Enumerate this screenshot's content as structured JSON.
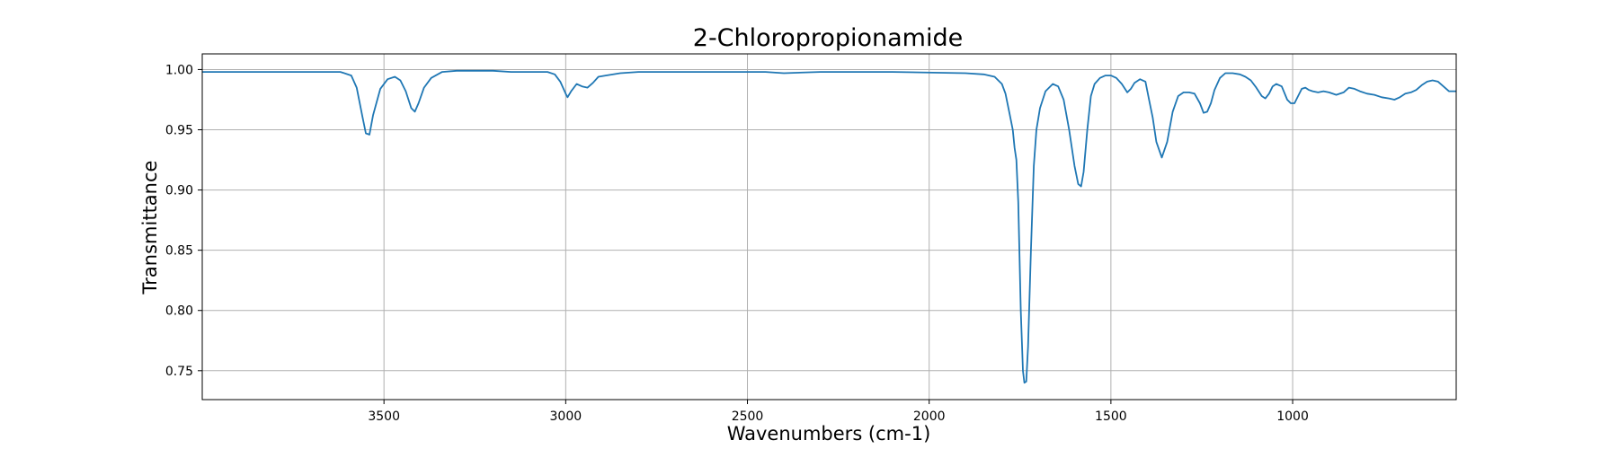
{
  "chart_data": {
    "type": "line",
    "title": "2-Chloropropionamide",
    "xlabel": "Wavenumbers (cm-1)",
    "ylabel": "Transmittance",
    "xlim": [
      4000,
      550
    ],
    "ylim": [
      0.726,
      1.013
    ],
    "x_inverted": true,
    "grid": true,
    "line_color": "#1f77b4",
    "x_ticks": [
      3500,
      3000,
      2500,
      2000,
      1500,
      1000
    ],
    "y_ticks": [
      0.75,
      0.8,
      0.85,
      0.9,
      0.95,
      1.0
    ],
    "x_tick_labels": [
      "3500",
      "3000",
      "2500",
      "2000",
      "1500",
      "1000"
    ],
    "y_tick_labels": [
      "0.75",
      "0.80",
      "0.85",
      "0.90",
      "0.95",
      "1.00"
    ],
    "series": [
      {
        "x": [
          4000,
          3900,
          3800,
          3700,
          3620,
          3590,
          3575,
          3560,
          3550,
          3540,
          3530,
          3510,
          3490,
          3470,
          3455,
          3440,
          3425,
          3415,
          3405,
          3390,
          3370,
          3340,
          3300,
          3260,
          3200,
          3150,
          3100,
          3050,
          3030,
          3015,
          3000,
          2995,
          2985,
          2970,
          2955,
          2940,
          2925,
          2910,
          2890,
          2850,
          2800,
          2700,
          2600,
          2450,
          2400,
          2300,
          2100,
          1900,
          1850,
          1820,
          1800,
          1790,
          1780,
          1770,
          1765,
          1760,
          1755,
          1748,
          1742,
          1738,
          1733,
          1728,
          1720,
          1712,
          1705,
          1695,
          1680,
          1660,
          1645,
          1630,
          1615,
          1600,
          1590,
          1582,
          1575,
          1565,
          1555,
          1545,
          1530,
          1515,
          1500,
          1485,
          1470,
          1455,
          1445,
          1435,
          1420,
          1405,
          1395,
          1385,
          1375,
          1360,
          1345,
          1330,
          1315,
          1300,
          1285,
          1270,
          1255,
          1245,
          1235,
          1225,
          1215,
          1200,
          1185,
          1165,
          1145,
          1130,
          1115,
          1100,
          1085,
          1075,
          1065,
          1055,
          1045,
          1030,
          1015,
          1005,
          995,
          985,
          975,
          965,
          955,
          945,
          930,
          915,
          900,
          880,
          860,
          845,
          830,
          815,
          795,
          775,
          755,
          735,
          720,
          705,
          690,
          675,
          660,
          645,
          630,
          615,
          600,
          585,
          570,
          550
        ],
        "y": [
          0.998,
          0.998,
          0.998,
          0.998,
          0.998,
          0.995,
          0.985,
          0.962,
          0.947,
          0.946,
          0.962,
          0.984,
          0.992,
          0.994,
          0.991,
          0.982,
          0.968,
          0.965,
          0.972,
          0.985,
          0.993,
          0.998,
          0.999,
          0.999,
          0.999,
          0.998,
          0.998,
          0.998,
          0.996,
          0.99,
          0.98,
          0.977,
          0.982,
          0.988,
          0.986,
          0.985,
          0.989,
          0.994,
          0.995,
          0.997,
          0.998,
          0.998,
          0.998,
          0.998,
          0.997,
          0.998,
          0.998,
          0.997,
          0.996,
          0.994,
          0.988,
          0.98,
          0.965,
          0.95,
          0.935,
          0.925,
          0.89,
          0.8,
          0.75,
          0.74,
          0.741,
          0.77,
          0.85,
          0.92,
          0.95,
          0.968,
          0.982,
          0.988,
          0.986,
          0.975,
          0.95,
          0.92,
          0.905,
          0.903,
          0.915,
          0.95,
          0.978,
          0.988,
          0.993,
          0.995,
          0.995,
          0.993,
          0.988,
          0.981,
          0.984,
          0.989,
          0.992,
          0.99,
          0.975,
          0.96,
          0.94,
          0.927,
          0.94,
          0.965,
          0.978,
          0.981,
          0.981,
          0.98,
          0.972,
          0.964,
          0.965,
          0.972,
          0.983,
          0.993,
          0.997,
          0.997,
          0.996,
          0.994,
          0.991,
          0.985,
          0.978,
          0.976,
          0.98,
          0.986,
          0.988,
          0.986,
          0.975,
          0.972,
          0.972,
          0.978,
          0.984,
          0.985,
          0.983,
          0.982,
          0.981,
          0.982,
          0.981,
          0.979,
          0.981,
          0.985,
          0.984,
          0.982,
          0.98,
          0.979,
          0.977,
          0.976,
          0.975,
          0.977,
          0.98,
          0.981,
          0.983,
          0.987,
          0.99,
          0.991,
          0.99,
          0.986,
          0.982,
          0.982
        ]
      }
    ]
  }
}
